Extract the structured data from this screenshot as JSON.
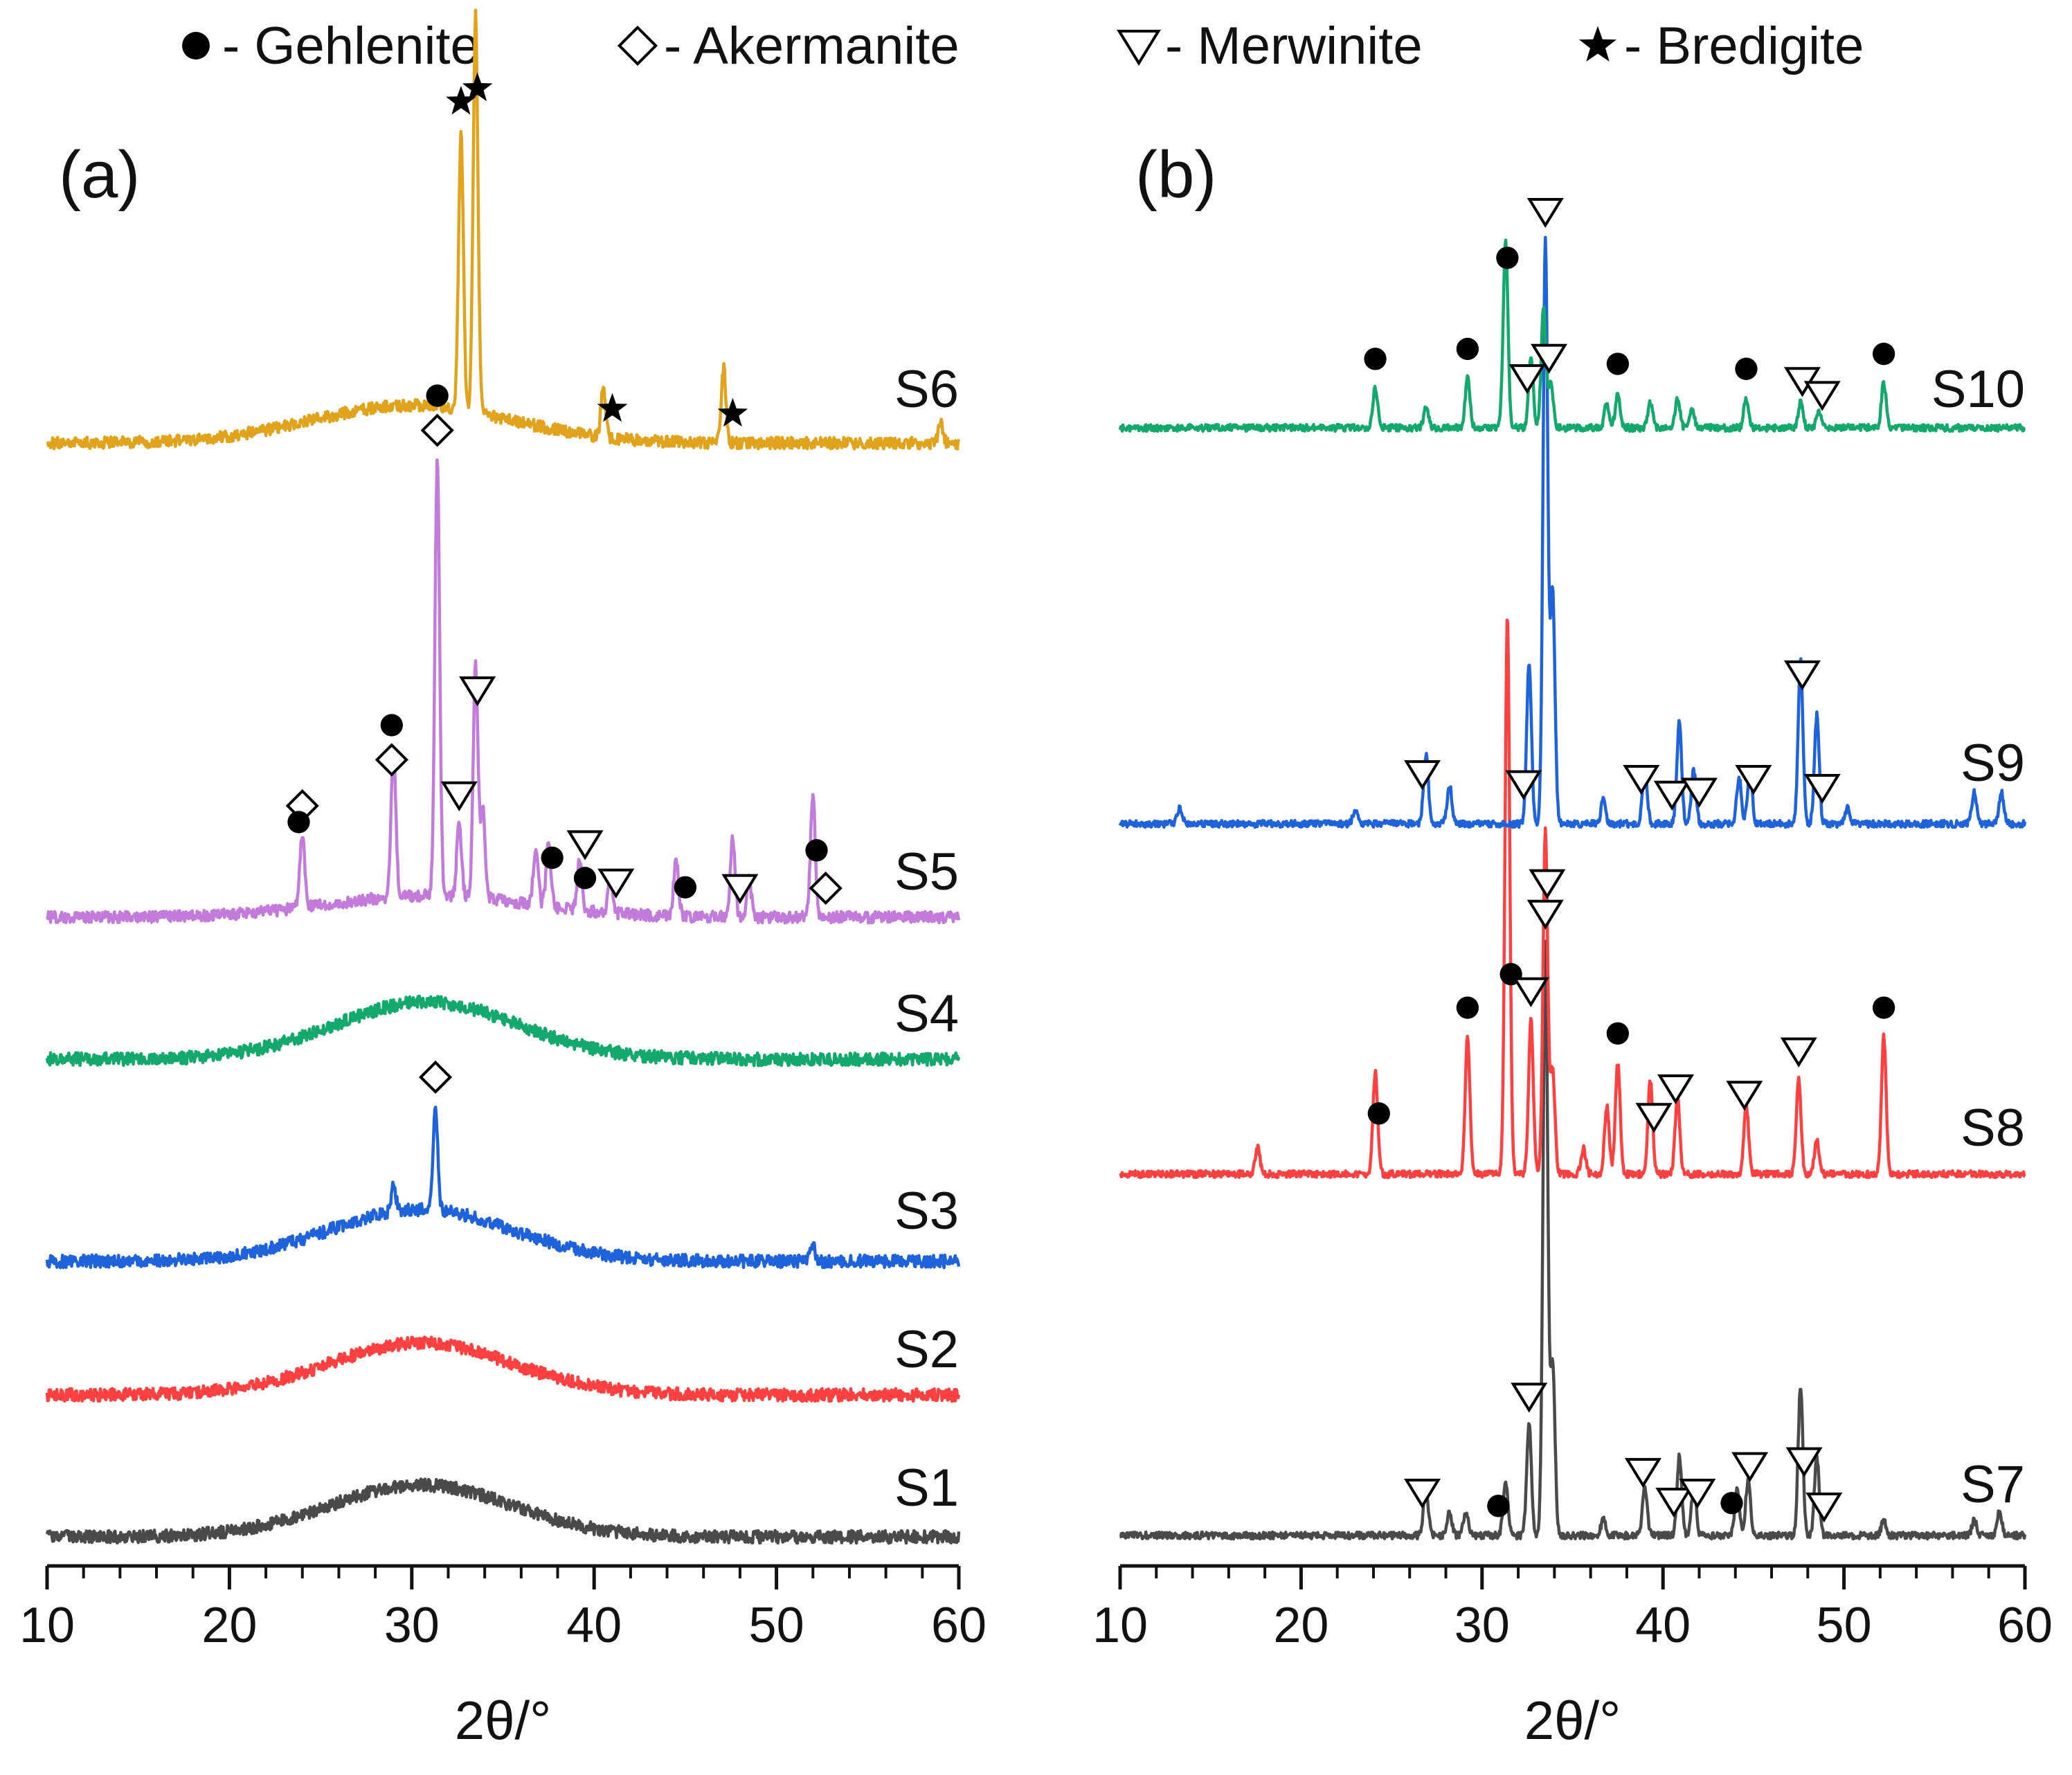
{
  "legend": [
    {
      "marker": "circle",
      "label": "- Gehlenite"
    },
    {
      "marker": "diamond",
      "label": "- Akermanite"
    },
    {
      "marker": "triangle",
      "label": "- Merwinite"
    },
    {
      "marker": "star",
      "label": "- Bredigite"
    }
  ],
  "chart_data": [
    {
      "type": "line",
      "panel": "(a)",
      "xlabel": "2θ/°",
      "ylabel": "",
      "xlim": [
        10,
        60
      ],
      "xticks": [
        "10",
        "20",
        "30",
        "40",
        "50",
        "60"
      ],
      "y_axis_visible": false,
      "series": [
        {
          "name": "S1",
          "color": "#4a4a4a",
          "amorphous_hump": {
            "center": 30.5,
            "width": 5.0,
            "height": 0.5
          },
          "peaks": []
        },
        {
          "name": "S2",
          "color": "#ff4040",
          "amorphous_hump": {
            "center": 30.5,
            "width": 5.0,
            "height": 0.5
          },
          "peaks": []
        },
        {
          "name": "S3",
          "color": "#1f63dc",
          "amorphous_hump": {
            "center": 30.5,
            "width": 5.0,
            "height": 0.5
          },
          "peaks": [
            {
              "x": 29.0,
              "y": 0.25
            },
            {
              "x": 31.3,
              "y": 1.0
            },
            {
              "x": 52.0,
              "y": 0.15
            }
          ]
        },
        {
          "name": "S4",
          "color": "#13a86c",
          "amorphous_hump": {
            "center": 30.8,
            "width": 5.0,
            "height": 0.55
          },
          "peaks": []
        },
        {
          "name": "S5",
          "color": "#c37bdb",
          "amorphous_hump": {
            "center": 31.0,
            "width": 5.5,
            "height": 0.3
          },
          "peaks": [
            {
              "x": 24.0,
              "y": 1.0
            },
            {
              "x": 29.0,
              "y": 2.0
            },
            {
              "x": 31.4,
              "y": 6.0
            },
            {
              "x": 32.6,
              "y": 1.0
            },
            {
              "x": 33.5,
              "y": 3.2
            },
            {
              "x": 33.9,
              "y": 1.2
            },
            {
              "x": 36.8,
              "y": 0.8
            },
            {
              "x": 37.5,
              "y": 0.9
            },
            {
              "x": 39.2,
              "y": 0.7
            },
            {
              "x": 40.9,
              "y": 0.5
            },
            {
              "x": 44.5,
              "y": 0.8
            },
            {
              "x": 47.6,
              "y": 1.1
            },
            {
              "x": 48.5,
              "y": 0.5
            },
            {
              "x": 52.0,
              "y": 1.7
            }
          ]
        },
        {
          "name": "S6",
          "color": "#e0a31b",
          "amorphous_hump": {
            "center": 30.0,
            "width": 5.5,
            "height": 0.35
          },
          "peaks": [
            {
              "x": 32.7,
              "y": 2.6
            },
            {
              "x": 33.5,
              "y": 3.7
            },
            {
              "x": 40.5,
              "y": 0.45
            },
            {
              "x": 47.1,
              "y": 0.7
            },
            {
              "x": 59.0,
              "y": 0.2
            }
          ]
        }
      ],
      "annotations": [
        {
          "series": "S6",
          "phase": "Bredigite",
          "x": 32.7
        },
        {
          "series": "S6",
          "phase": "Bredigite",
          "x": 33.6
        },
        {
          "series": "S6",
          "phase": "Bredigite",
          "x": 41.0
        },
        {
          "series": "S6",
          "phase": "Bredigite",
          "x": 47.6
        },
        {
          "series": "S5",
          "phase": "Akermanite",
          "x": 31.4
        },
        {
          "series": "S5",
          "phase": "Gehlenite",
          "x": 31.4
        },
        {
          "series": "S5",
          "phase": "Merwinite",
          "x": 33.6
        },
        {
          "series": "S5",
          "phase": "Merwinite",
          "x": 32.6
        },
        {
          "series": "S5",
          "phase": "Akermanite",
          "x": 24.0
        },
        {
          "series": "S5",
          "phase": "Gehlenite",
          "x": 23.8
        },
        {
          "series": "S5",
          "phase": "Akermanite",
          "x": 28.9
        },
        {
          "series": "S5",
          "phase": "Gehlenite",
          "x": 28.9
        },
        {
          "series": "S5",
          "phase": "Gehlenite",
          "x": 37.7
        },
        {
          "series": "S5",
          "phase": "Gehlenite",
          "x": 39.5
        },
        {
          "series": "S5",
          "phase": "Merwinite",
          "x": 39.5
        },
        {
          "series": "S5",
          "phase": "Merwinite",
          "x": 41.2
        },
        {
          "series": "S5",
          "phase": "Gehlenite",
          "x": 45.0
        },
        {
          "series": "S5",
          "phase": "Merwinite",
          "x": 48.0
        },
        {
          "series": "S5",
          "phase": "Akermanite",
          "x": 52.7
        },
        {
          "series": "S5",
          "phase": "Gehlenite",
          "x": 52.2
        },
        {
          "series": "S3",
          "phase": "Akermanite",
          "x": 31.3
        }
      ]
    },
    {
      "type": "line",
      "panel": "(b)",
      "xlabel": "2θ/°",
      "ylabel": "",
      "xlim": [
        10,
        60
      ],
      "xticks": [
        "10",
        "20",
        "30",
        "40",
        "50",
        "60"
      ],
      "y_axis_visible": false,
      "series": [
        {
          "name": "S7",
          "color": "#4a4a4a",
          "amorphous_hump": {
            "center": 31,
            "width": 5,
            "height": 0.0
          },
          "peaks": [
            {
              "x": 26.9,
              "y": 0.6
            },
            {
              "x": 28.2,
              "y": 0.3
            },
            {
              "x": 29.1,
              "y": 0.3
            },
            {
              "x": 31.3,
              "y": 0.7
            },
            {
              "x": 32.6,
              "y": 1.4
            },
            {
              "x": 33.5,
              "y": 7.5
            },
            {
              "x": 33.9,
              "y": 2.2
            },
            {
              "x": 36.7,
              "y": 0.2
            },
            {
              "x": 39.0,
              "y": 0.6
            },
            {
              "x": 40.9,
              "y": 1.0
            },
            {
              "x": 41.7,
              "y": 0.6
            },
            {
              "x": 44.1,
              "y": 0.6
            },
            {
              "x": 44.7,
              "y": 0.7
            },
            {
              "x": 47.6,
              "y": 1.9
            },
            {
              "x": 48.5,
              "y": 1.0
            },
            {
              "x": 52.2,
              "y": 0.2
            },
            {
              "x": 57.2,
              "y": 0.2
            },
            {
              "x": 58.6,
              "y": 0.3
            }
          ]
        },
        {
          "name": "S8",
          "color": "#ff4040",
          "amorphous_hump": {
            "center": 31,
            "width": 5,
            "height": 0.0
          },
          "peaks": [
            {
              "x": 17.6,
              "y": 0.3
            },
            {
              "x": 24.1,
              "y": 1.2
            },
            {
              "x": 29.2,
              "y": 1.6
            },
            {
              "x": 31.4,
              "y": 6.5
            },
            {
              "x": 32.7,
              "y": 1.8
            },
            {
              "x": 33.5,
              "y": 4.0
            },
            {
              "x": 33.9,
              "y": 1.2
            },
            {
              "x": 35.6,
              "y": 0.3
            },
            {
              "x": 36.9,
              "y": 0.8
            },
            {
              "x": 37.5,
              "y": 1.3
            },
            {
              "x": 39.3,
              "y": 1.1
            },
            {
              "x": 40.8,
              "y": 0.9
            },
            {
              "x": 44.6,
              "y": 0.8
            },
            {
              "x": 47.5,
              "y": 1.1
            },
            {
              "x": 48.5,
              "y": 0.4
            },
            {
              "x": 52.2,
              "y": 1.6
            }
          ]
        },
        {
          "name": "S9",
          "color": "#1f63dc",
          "amorphous_hump": {
            "center": 31,
            "width": 5,
            "height": 0.0
          },
          "peaks": [
            {
              "x": 13.3,
              "y": 0.2
            },
            {
              "x": 23.0,
              "y": 0.2
            },
            {
              "x": 26.9,
              "y": 0.9
            },
            {
              "x": 28.2,
              "y": 0.5
            },
            {
              "x": 32.6,
              "y": 2.1
            },
            {
              "x": 33.5,
              "y": 7.5
            },
            {
              "x": 33.9,
              "y": 3.0
            },
            {
              "x": 36.7,
              "y": 0.3
            },
            {
              "x": 39.0,
              "y": 0.7
            },
            {
              "x": 40.9,
              "y": 1.3
            },
            {
              "x": 41.7,
              "y": 0.7
            },
            {
              "x": 44.2,
              "y": 0.6
            },
            {
              "x": 44.8,
              "y": 0.7
            },
            {
              "x": 47.6,
              "y": 2.1
            },
            {
              "x": 48.5,
              "y": 1.4
            },
            {
              "x": 50.2,
              "y": 0.2
            },
            {
              "x": 57.2,
              "y": 0.4
            },
            {
              "x": 58.7,
              "y": 0.4
            }
          ]
        },
        {
          "name": "S10",
          "color": "#13a86c",
          "amorphous_hump": {
            "center": 31,
            "width": 5,
            "height": 0.0
          },
          "peaks": [
            {
              "x": 24.1,
              "y": 0.8
            },
            {
              "x": 26.9,
              "y": 0.4
            },
            {
              "x": 29.2,
              "y": 1.0
            },
            {
              "x": 31.3,
              "y": 3.8
            },
            {
              "x": 32.7,
              "y": 1.4
            },
            {
              "x": 33.4,
              "y": 2.4
            },
            {
              "x": 33.8,
              "y": 0.9
            },
            {
              "x": 36.9,
              "y": 0.5
            },
            {
              "x": 37.5,
              "y": 0.7
            },
            {
              "x": 39.3,
              "y": 0.5
            },
            {
              "x": 40.8,
              "y": 0.6
            },
            {
              "x": 41.6,
              "y": 0.4
            },
            {
              "x": 44.6,
              "y": 0.6
            },
            {
              "x": 47.6,
              "y": 0.5
            },
            {
              "x": 48.6,
              "y": 0.3
            },
            {
              "x": 52.2,
              "y": 0.9
            }
          ]
        }
      ],
      "annotations": [
        {
          "series": "S10",
          "phase": "Gehlenite",
          "x": 31.4
        },
        {
          "series": "S10",
          "phase": "Merwinite",
          "x": 33.7
        },
        {
          "series": "S10",
          "phase": "Merwinite",
          "x": 32.5
        },
        {
          "series": "S10",
          "phase": "Gehlenite",
          "x": 24.1
        },
        {
          "series": "S10",
          "phase": "Gehlenite",
          "x": 29.2
        },
        {
          "series": "S10",
          "phase": "Gehlenite",
          "x": 37.5
        },
        {
          "series": "S10",
          "phase": "Gehlenite",
          "x": 44.6
        },
        {
          "series": "S10",
          "phase": "Merwinite",
          "x": 47.7
        },
        {
          "series": "S10",
          "phase": "Merwinite",
          "x": 48.8
        },
        {
          "series": "S10",
          "phase": "Gehlenite",
          "x": 52.2
        },
        {
          "series": "S9",
          "phase": "Merwinite",
          "x": 33.5
        },
        {
          "series": "S9",
          "phase": "Merwinite",
          "x": 32.3
        },
        {
          "series": "S9",
          "phase": "Merwinite",
          "x": 26.7
        },
        {
          "series": "S9",
          "phase": "Merwinite",
          "x": 38.8
        },
        {
          "series": "S9",
          "phase": "Merwinite",
          "x": 40.5
        },
        {
          "series": "S9",
          "phase": "Merwinite",
          "x": 42.0
        },
        {
          "series": "S9",
          "phase": "Merwinite",
          "x": 45.0
        },
        {
          "series": "S9",
          "phase": "Merwinite",
          "x": 47.7
        },
        {
          "series": "S9",
          "phase": "Merwinite",
          "x": 48.8
        },
        {
          "series": "S8",
          "phase": "Gehlenite",
          "x": 31.6
        },
        {
          "series": "S8",
          "phase": "Merwinite",
          "x": 33.6
        },
        {
          "series": "S8",
          "phase": "Merwinite",
          "x": 32.7
        },
        {
          "series": "S8",
          "phase": "Gehlenite",
          "x": 24.3
        },
        {
          "series": "S8",
          "phase": "Gehlenite",
          "x": 29.2
        },
        {
          "series": "S8",
          "phase": "Gehlenite",
          "x": 37.5
        },
        {
          "series": "S8",
          "phase": "Merwinite",
          "x": 39.5
        },
        {
          "series": "S8",
          "phase": "Merwinite",
          "x": 40.7
        },
        {
          "series": "S8",
          "phase": "Merwinite",
          "x": 44.5
        },
        {
          "series": "S8",
          "phase": "Merwinite",
          "x": 47.5
        },
        {
          "series": "S8",
          "phase": "Gehlenite",
          "x": 52.2
        },
        {
          "series": "S7",
          "phase": "Merwinite",
          "x": 33.5
        },
        {
          "series": "S7",
          "phase": "Merwinite",
          "x": 32.6
        },
        {
          "series": "S7",
          "phase": "Merwinite",
          "x": 26.7
        },
        {
          "series": "S7",
          "phase": "Gehlenite",
          "x": 30.9
        },
        {
          "series": "S7",
          "phase": "Merwinite",
          "x": 38.9
        },
        {
          "series": "S7",
          "phase": "Merwinite",
          "x": 40.6
        },
        {
          "series": "S7",
          "phase": "Merwinite",
          "x": 41.9
        },
        {
          "series": "S7",
          "phase": "Gehlenite",
          "x": 43.8
        },
        {
          "series": "S7",
          "phase": "Merwinite",
          "x": 44.8
        },
        {
          "series": "S7",
          "phase": "Merwinite",
          "x": 47.8
        },
        {
          "series": "S7",
          "phase": "Merwinite",
          "x": 48.9
        }
      ]
    }
  ]
}
